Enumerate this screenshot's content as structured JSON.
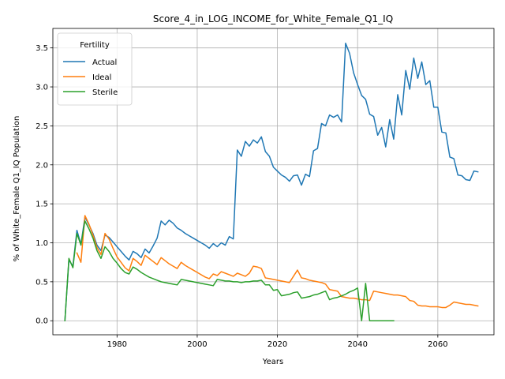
{
  "chart_data": {
    "type": "line",
    "title": "Score_4_in_LOG_INCOME_for_White_Female_Q1_IQ",
    "xlabel": "Years",
    "ylabel": "% of White_Female Q1_IQ Population",
    "xlim": [
      1964,
      2074
    ],
    "ylim": [
      -0.18,
      3.75
    ],
    "x_ticks": [
      1980,
      2000,
      2020,
      2040,
      2060
    ],
    "y_ticks": [
      0.0,
      0.5,
      1.0,
      1.5,
      2.0,
      2.5,
      3.0,
      3.5
    ],
    "y_tick_labels": [
      "0.0",
      "0.5",
      "1.0",
      "1.5",
      "2.0",
      "2.5",
      "3.0",
      "3.5"
    ],
    "grid": true,
    "legend": {
      "title": "Fertility",
      "placement": "upper-left"
    },
    "series": [
      {
        "name": "Actual",
        "color": "#1f77b4",
        "points": [
          [
            1967,
            0.0
          ],
          [
            1968,
            0.78
          ],
          [
            1969,
            0.7
          ],
          [
            1970,
            1.16
          ],
          [
            1971,
            0.98
          ],
          [
            1972,
            1.33
          ],
          [
            1973,
            1.23
          ],
          [
            1974,
            1.12
          ],
          [
            1975,
            0.97
          ],
          [
            1976,
            0.9
          ],
          [
            1977,
            1.1
          ],
          [
            1978,
            1.07
          ],
          [
            1979,
            1.01
          ],
          [
            1980,
            0.95
          ],
          [
            1981,
            0.89
          ],
          [
            1982,
            0.83
          ],
          [
            1983,
            0.78
          ],
          [
            1984,
            0.89
          ],
          [
            1985,
            0.86
          ],
          [
            1986,
            0.81
          ],
          [
            1987,
            0.92
          ],
          [
            1988,
            0.87
          ],
          [
            1989,
            0.96
          ],
          [
            1990,
            1.06
          ],
          [
            1991,
            1.28
          ],
          [
            1992,
            1.23
          ],
          [
            1993,
            1.29
          ],
          [
            1994,
            1.25
          ],
          [
            1995,
            1.19
          ],
          [
            1996,
            1.16
          ],
          [
            1997,
            1.12
          ],
          [
            1998,
            1.09
          ],
          [
            1999,
            1.06
          ],
          [
            2000,
            1.03
          ],
          [
            2001,
            1.0
          ],
          [
            2002,
            0.97
          ],
          [
            2003,
            0.93
          ],
          [
            2004,
            0.99
          ],
          [
            2005,
            0.95
          ],
          [
            2006,
            1.0
          ],
          [
            2007,
            0.97
          ],
          [
            2008,
            1.08
          ],
          [
            2009,
            1.05
          ],
          [
            2010,
            2.19
          ],
          [
            2011,
            2.11
          ],
          [
            2012,
            2.3
          ],
          [
            2013,
            2.24
          ],
          [
            2014,
            2.32
          ],
          [
            2015,
            2.28
          ],
          [
            2016,
            2.36
          ],
          [
            2017,
            2.17
          ],
          [
            2018,
            2.11
          ],
          [
            2019,
            1.97
          ],
          [
            2020,
            1.92
          ],
          [
            2021,
            1.87
          ],
          [
            2022,
            1.84
          ],
          [
            2023,
            1.79
          ],
          [
            2024,
            1.86
          ],
          [
            2025,
            1.87
          ],
          [
            2026,
            1.74
          ],
          [
            2027,
            1.88
          ],
          [
            2028,
            1.85
          ],
          [
            2029,
            2.18
          ],
          [
            2030,
            2.21
          ],
          [
            2031,
            2.53
          ],
          [
            2032,
            2.5
          ],
          [
            2033,
            2.64
          ],
          [
            2034,
            2.61
          ],
          [
            2035,
            2.64
          ],
          [
            2036,
            2.55
          ],
          [
            2037,
            3.56
          ],
          [
            2038,
            3.43
          ],
          [
            2039,
            3.18
          ],
          [
            2040,
            3.03
          ],
          [
            2041,
            2.89
          ],
          [
            2042,
            2.84
          ],
          [
            2043,
            2.65
          ],
          [
            2044,
            2.62
          ],
          [
            2045,
            2.38
          ],
          [
            2046,
            2.48
          ],
          [
            2047,
            2.23
          ],
          [
            2048,
            2.58
          ],
          [
            2049,
            2.33
          ],
          [
            2050,
            2.9
          ],
          [
            2051,
            2.64
          ],
          [
            2052,
            3.21
          ],
          [
            2053,
            2.97
          ],
          [
            2054,
            3.37
          ],
          [
            2055,
            3.11
          ],
          [
            2056,
            3.32
          ],
          [
            2057,
            3.03
          ],
          [
            2058,
            3.08
          ],
          [
            2059,
            2.74
          ],
          [
            2060,
            2.74
          ],
          [
            2061,
            2.42
          ],
          [
            2062,
            2.41
          ],
          [
            2063,
            2.1
          ],
          [
            2064,
            2.08
          ],
          [
            2065,
            1.87
          ],
          [
            2066,
            1.86
          ],
          [
            2067,
            1.81
          ],
          [
            2068,
            1.8
          ],
          [
            2069,
            1.92
          ],
          [
            2070,
            1.91
          ]
        ]
      },
      {
        "name": "Ideal",
        "color": "#ff7f0e",
        "points": [
          [
            1970,
            0.87
          ],
          [
            1971,
            0.75
          ],
          [
            1972,
            1.35
          ],
          [
            1973,
            1.24
          ],
          [
            1974,
            1.1
          ],
          [
            1975,
            0.94
          ],
          [
            1976,
            0.85
          ],
          [
            1977,
            1.12
          ],
          [
            1978,
            1.05
          ],
          [
            1979,
            0.93
          ],
          [
            1980,
            0.82
          ],
          [
            1981,
            0.75
          ],
          [
            1982,
            0.68
          ],
          [
            1983,
            0.64
          ],
          [
            1984,
            0.8
          ],
          [
            1985,
            0.76
          ],
          [
            1986,
            0.71
          ],
          [
            1987,
            0.84
          ],
          [
            1988,
            0.8
          ],
          [
            1989,
            0.76
          ],
          [
            1990,
            0.72
          ],
          [
            1991,
            0.81
          ],
          [
            1992,
            0.77
          ],
          [
            1993,
            0.73
          ],
          [
            1994,
            0.7
          ],
          [
            1995,
            0.67
          ],
          [
            1996,
            0.75
          ],
          [
            1997,
            0.71
          ],
          [
            1998,
            0.68
          ],
          [
            1999,
            0.65
          ],
          [
            2000,
            0.62
          ],
          [
            2001,
            0.59
          ],
          [
            2002,
            0.56
          ],
          [
            2003,
            0.54
          ],
          [
            2004,
            0.6
          ],
          [
            2005,
            0.58
          ],
          [
            2006,
            0.63
          ],
          [
            2007,
            0.61
          ],
          [
            2008,
            0.59
          ],
          [
            2009,
            0.57
          ],
          [
            2010,
            0.61
          ],
          [
            2011,
            0.59
          ],
          [
            2012,
            0.57
          ],
          [
            2013,
            0.61
          ],
          [
            2014,
            0.7
          ],
          [
            2015,
            0.69
          ],
          [
            2016,
            0.67
          ],
          [
            2017,
            0.55
          ],
          [
            2018,
            0.54
          ],
          [
            2019,
            0.53
          ],
          [
            2020,
            0.52
          ],
          [
            2021,
            0.51
          ],
          [
            2022,
            0.5
          ],
          [
            2023,
            0.49
          ],
          [
            2024,
            0.57
          ],
          [
            2025,
            0.65
          ],
          [
            2026,
            0.55
          ],
          [
            2027,
            0.54
          ],
          [
            2028,
            0.52
          ],
          [
            2029,
            0.51
          ],
          [
            2030,
            0.5
          ],
          [
            2031,
            0.49
          ],
          [
            2032,
            0.47
          ],
          [
            2033,
            0.4
          ],
          [
            2034,
            0.39
          ],
          [
            2035,
            0.38
          ],
          [
            2036,
            0.31
          ],
          [
            2037,
            0.3
          ],
          [
            2038,
            0.29
          ],
          [
            2039,
            0.29
          ],
          [
            2040,
            0.28
          ],
          [
            2041,
            0.27
          ],
          [
            2042,
            0.27
          ],
          [
            2043,
            0.26
          ],
          [
            2044,
            0.38
          ],
          [
            2045,
            0.37
          ],
          [
            2046,
            0.36
          ],
          [
            2047,
            0.35
          ],
          [
            2048,
            0.34
          ],
          [
            2049,
            0.33
          ],
          [
            2050,
            0.33
          ],
          [
            2051,
            0.32
          ],
          [
            2052,
            0.31
          ],
          [
            2053,
            0.26
          ],
          [
            2054,
            0.25
          ],
          [
            2055,
            0.2
          ],
          [
            2056,
            0.19
          ],
          [
            2057,
            0.19
          ],
          [
            2058,
            0.18
          ],
          [
            2059,
            0.18
          ],
          [
            2060,
            0.18
          ],
          [
            2061,
            0.17
          ],
          [
            2062,
            0.17
          ],
          [
            2063,
            0.2
          ],
          [
            2064,
            0.24
          ],
          [
            2065,
            0.23
          ],
          [
            2066,
            0.22
          ],
          [
            2067,
            0.21
          ],
          [
            2068,
            0.21
          ],
          [
            2069,
            0.2
          ],
          [
            2070,
            0.19
          ]
        ]
      },
      {
        "name": "Sterile",
        "color": "#2ca02c",
        "points": [
          [
            1967,
            0.0
          ],
          [
            1968,
            0.8
          ],
          [
            1969,
            0.68
          ],
          [
            1970,
            1.12
          ],
          [
            1971,
            0.97
          ],
          [
            1972,
            1.28
          ],
          [
            1973,
            1.18
          ],
          [
            1974,
            1.06
          ],
          [
            1975,
            0.9
          ],
          [
            1976,
            0.8
          ],
          [
            1977,
            0.95
          ],
          [
            1978,
            0.89
          ],
          [
            1979,
            0.8
          ],
          [
            1980,
            0.74
          ],
          [
            1981,
            0.67
          ],
          [
            1982,
            0.62
          ],
          [
            1983,
            0.6
          ],
          [
            1984,
            0.69
          ],
          [
            1985,
            0.66
          ],
          [
            1986,
            0.62
          ],
          [
            1987,
            0.59
          ],
          [
            1988,
            0.56
          ],
          [
            1989,
            0.54
          ],
          [
            1990,
            0.52
          ],
          [
            1991,
            0.5
          ],
          [
            1992,
            0.49
          ],
          [
            1993,
            0.48
          ],
          [
            1994,
            0.47
          ],
          [
            1995,
            0.46
          ],
          [
            1996,
            0.53
          ],
          [
            1997,
            0.52
          ],
          [
            1998,
            0.51
          ],
          [
            1999,
            0.5
          ],
          [
            2000,
            0.49
          ],
          [
            2001,
            0.48
          ],
          [
            2002,
            0.47
          ],
          [
            2003,
            0.46
          ],
          [
            2004,
            0.45
          ],
          [
            2005,
            0.53
          ],
          [
            2006,
            0.52
          ],
          [
            2007,
            0.51
          ],
          [
            2008,
            0.51
          ],
          [
            2009,
            0.5
          ],
          [
            2010,
            0.5
          ],
          [
            2011,
            0.49
          ],
          [
            2012,
            0.5
          ],
          [
            2013,
            0.5
          ],
          [
            2014,
            0.51
          ],
          [
            2015,
            0.51
          ],
          [
            2016,
            0.52
          ],
          [
            2017,
            0.46
          ],
          [
            2018,
            0.46
          ],
          [
            2019,
            0.39
          ],
          [
            2020,
            0.4
          ],
          [
            2021,
            0.32
          ],
          [
            2022,
            0.33
          ],
          [
            2023,
            0.34
          ],
          [
            2024,
            0.36
          ],
          [
            2025,
            0.37
          ],
          [
            2026,
            0.29
          ],
          [
            2027,
            0.3
          ],
          [
            2028,
            0.31
          ],
          [
            2029,
            0.33
          ],
          [
            2030,
            0.34
          ],
          [
            2031,
            0.36
          ],
          [
            2032,
            0.38
          ],
          [
            2033,
            0.27
          ],
          [
            2034,
            0.29
          ],
          [
            2035,
            0.3
          ],
          [
            2036,
            0.32
          ],
          [
            2037,
            0.34
          ],
          [
            2038,
            0.37
          ],
          [
            2039,
            0.39
          ],
          [
            2040,
            0.42
          ],
          [
            2041,
            0.0
          ],
          [
            2042,
            0.48
          ],
          [
            2043,
            0.0
          ],
          [
            2044,
            0.0
          ],
          [
            2045,
            0.0
          ],
          [
            2046,
            0.0
          ],
          [
            2047,
            0.0
          ],
          [
            2048,
            0.0
          ],
          [
            2049,
            0.0
          ]
        ]
      }
    ]
  }
}
